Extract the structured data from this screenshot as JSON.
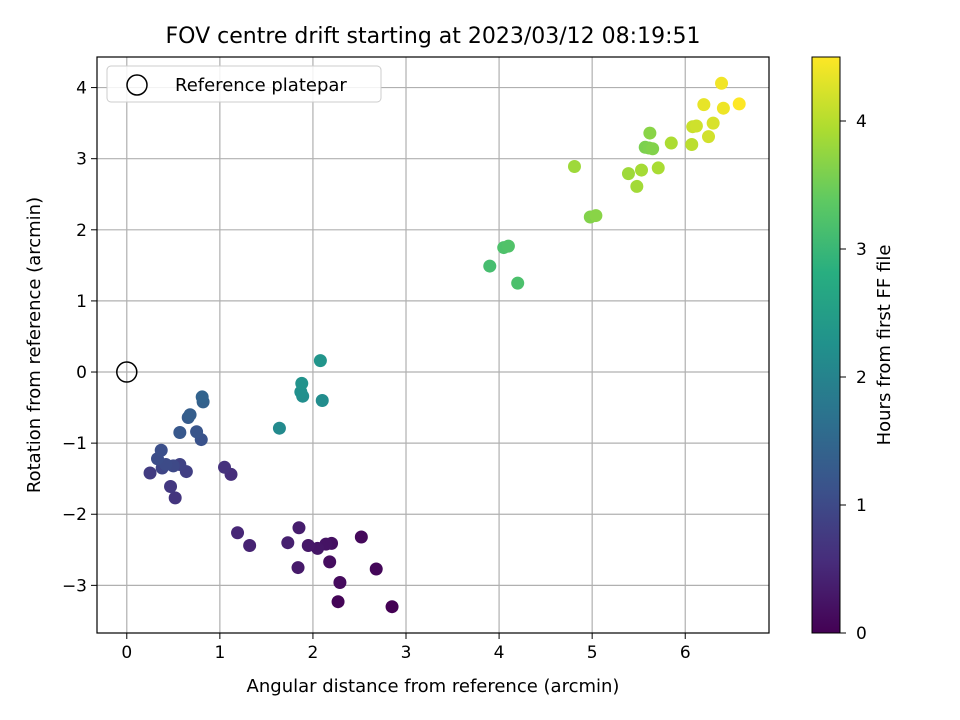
{
  "chart_data": {
    "type": "scatter",
    "title": "FOV centre drift starting at 2023/03/12 08:19:51",
    "xlabel": "Angular distance from reference (arcmin)",
    "ylabel": "Rotation from reference (arcmin)",
    "xlim": [
      -0.32,
      6.9
    ],
    "ylim": [
      -3.67,
      4.43
    ],
    "xticks": [
      0,
      1,
      2,
      3,
      4,
      5,
      6
    ],
    "yticks": [
      -3,
      -2,
      -1,
      0,
      1,
      2,
      3,
      4
    ],
    "grid": true,
    "legend": {
      "location": "top-left",
      "entries": [
        {
          "label": "Reference platepar",
          "marker": "open-circle",
          "x": 0,
          "y": 0
        }
      ]
    },
    "colorbar": {
      "label": "Hours from first FF file",
      "colormap": "viridis",
      "range": [
        0,
        4.5
      ],
      "ticks": [
        0,
        1,
        2,
        3,
        4
      ]
    },
    "points": [
      {
        "x": 2.85,
        "y": -3.3,
        "c": 0.0
      },
      {
        "x": 2.27,
        "y": -3.23,
        "c": 0.05
      },
      {
        "x": 2.68,
        "y": -2.77,
        "c": 0.08
      },
      {
        "x": 2.52,
        "y": -2.32,
        "c": 0.1
      },
      {
        "x": 2.29,
        "y": -2.96,
        "c": 0.13
      },
      {
        "x": 2.18,
        "y": -2.67,
        "c": 0.16
      },
      {
        "x": 2.2,
        "y": -2.41,
        "c": 0.2
      },
      {
        "x": 2.14,
        "y": -2.42,
        "c": 0.23
      },
      {
        "x": 2.05,
        "y": -2.48,
        "c": 0.27
      },
      {
        "x": 1.95,
        "y": -2.44,
        "c": 0.3
      },
      {
        "x": 1.84,
        "y": -2.75,
        "c": 0.33
      },
      {
        "x": 1.85,
        "y": -2.19,
        "c": 0.37
      },
      {
        "x": 1.73,
        "y": -2.4,
        "c": 0.4
      },
      {
        "x": 1.32,
        "y": -2.44,
        "c": 0.45
      },
      {
        "x": 1.19,
        "y": -2.26,
        "c": 0.5
      },
      {
        "x": 1.12,
        "y": -1.44,
        "c": 0.6
      },
      {
        "x": 1.05,
        "y": -1.34,
        "c": 0.65
      },
      {
        "x": 0.52,
        "y": -1.77,
        "c": 0.7
      },
      {
        "x": 0.47,
        "y": -1.61,
        "c": 0.75
      },
      {
        "x": 0.25,
        "y": -1.42,
        "c": 0.8
      },
      {
        "x": 0.64,
        "y": -1.4,
        "c": 0.85
      },
      {
        "x": 0.57,
        "y": -1.3,
        "c": 0.9
      },
      {
        "x": 0.38,
        "y": -1.35,
        "c": 0.95
      },
      {
        "x": 0.5,
        "y": -1.32,
        "c": 1.0
      },
      {
        "x": 0.42,
        "y": -1.3,
        "c": 1.03
      },
      {
        "x": 0.33,
        "y": -1.22,
        "c": 1.06
      },
      {
        "x": 0.37,
        "y": -1.1,
        "c": 1.1
      },
      {
        "x": 0.8,
        "y": -0.95,
        "c": 1.15
      },
      {
        "x": 0.75,
        "y": -0.84,
        "c": 1.2
      },
      {
        "x": 0.57,
        "y": -0.85,
        "c": 1.25
      },
      {
        "x": 0.66,
        "y": -0.64,
        "c": 1.3
      },
      {
        "x": 0.68,
        "y": -0.6,
        "c": 1.35
      },
      {
        "x": 0.82,
        "y": -0.42,
        "c": 1.4
      },
      {
        "x": 0.81,
        "y": -0.35,
        "c": 1.45
      },
      {
        "x": 1.64,
        "y": -0.79,
        "c": 2.15
      },
      {
        "x": 2.1,
        "y": -0.4,
        "c": 2.2
      },
      {
        "x": 1.89,
        "y": -0.34,
        "c": 2.22
      },
      {
        "x": 1.87,
        "y": -0.28,
        "c": 2.25
      },
      {
        "x": 1.88,
        "y": -0.16,
        "c": 2.3
      },
      {
        "x": 2.08,
        "y": 0.16,
        "c": 2.35
      },
      {
        "x": 3.9,
        "y": 1.49,
        "c": 3.15
      },
      {
        "x": 4.2,
        "y": 1.25,
        "c": 3.2
      },
      {
        "x": 4.05,
        "y": 1.75,
        "c": 3.23
      },
      {
        "x": 4.1,
        "y": 1.77,
        "c": 3.26
      },
      {
        "x": 4.81,
        "y": 2.89,
        "c": 3.85
      },
      {
        "x": 4.98,
        "y": 2.18,
        "c": 3.65
      },
      {
        "x": 5.04,
        "y": 2.2,
        "c": 3.7
      },
      {
        "x": 5.39,
        "y": 2.79,
        "c": 3.85
      },
      {
        "x": 5.48,
        "y": 2.61,
        "c": 3.88
      },
      {
        "x": 5.53,
        "y": 2.84,
        "c": 3.9
      },
      {
        "x": 5.57,
        "y": 3.16,
        "c": 3.6
      },
      {
        "x": 5.61,
        "y": 3.15,
        "c": 3.62
      },
      {
        "x": 5.65,
        "y": 3.14,
        "c": 3.65
      },
      {
        "x": 5.62,
        "y": 3.36,
        "c": 3.7
      },
      {
        "x": 5.71,
        "y": 2.87,
        "c": 3.93
      },
      {
        "x": 5.85,
        "y": 3.22,
        "c": 3.95
      },
      {
        "x": 6.07,
        "y": 3.2,
        "c": 4.05
      },
      {
        "x": 6.08,
        "y": 3.45,
        "c": 4.15
      },
      {
        "x": 6.12,
        "y": 3.46,
        "c": 4.18
      },
      {
        "x": 6.25,
        "y": 3.31,
        "c": 4.2
      },
      {
        "x": 6.3,
        "y": 3.5,
        "c": 4.25
      },
      {
        "x": 6.2,
        "y": 3.76,
        "c": 4.35
      },
      {
        "x": 6.41,
        "y": 3.71,
        "c": 4.4
      },
      {
        "x": 6.39,
        "y": 4.06,
        "c": 4.42
      },
      {
        "x": 6.58,
        "y": 3.77,
        "c": 4.5
      }
    ]
  }
}
